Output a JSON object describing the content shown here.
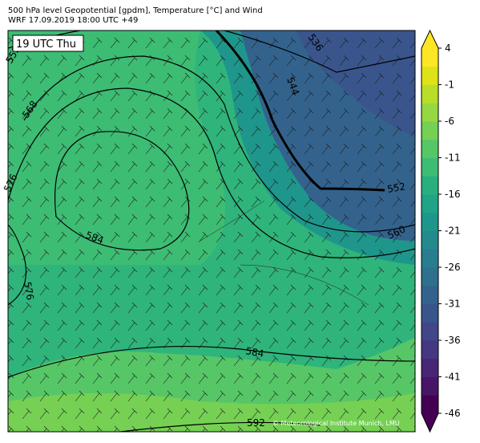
{
  "header": {
    "title": "500 hPa level Geopotential [gpdm], Temperature [°C] and Wind",
    "subtitle": "WRF 17.09.2019 18:00 UTC +49"
  },
  "time_label": "19 UTC Thu",
  "contour_labels": [
    "552",
    "568",
    "576",
    "576",
    "584",
    "584",
    "592",
    "536",
    "544",
    "552",
    "560"
  ],
  "colorbar": {
    "ticks": [
      4,
      -1,
      -6,
      -11,
      -16,
      -21,
      -26,
      -31,
      -36,
      -41,
      -46
    ],
    "colors": [
      "#440154",
      "#481467",
      "#482576",
      "#453781",
      "#404688",
      "#39558c",
      "#33638d",
      "#2d718e",
      "#287d8e",
      "#238a8d",
      "#1f968b",
      "#20a386",
      "#29af7f",
      "#3dbc74",
      "#56c667",
      "#75d054",
      "#95d840",
      "#b8de29",
      "#dde318",
      "#fde725"
    ]
  },
  "credit": "© Meteorological Institute Munich, LMU"
}
